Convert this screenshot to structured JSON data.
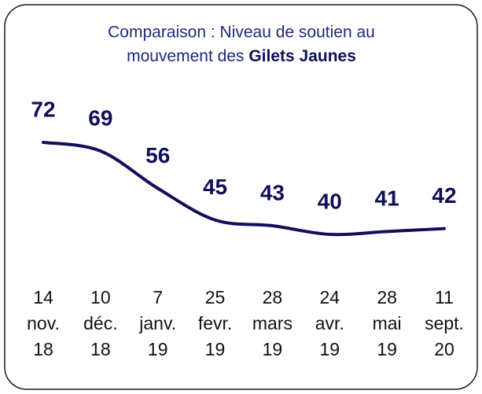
{
  "chart_data": {
    "type": "line",
    "title": "Comparaison : Niveau de soutien au",
    "title_line2": "mouvement des",
    "title_emphasis": "Gilets Jaunes",
    "categories": [
      [
        "14",
        "nov.",
        "18"
      ],
      [
        "10",
        "déc.",
        "18"
      ],
      [
        "7",
        "janv.",
        "19"
      ],
      [
        "25",
        "fevr.",
        "19"
      ],
      [
        "28",
        "mars",
        "19"
      ],
      [
        "24",
        "avr.",
        "19"
      ],
      [
        "28",
        "mai",
        "19"
      ],
      [
        "11",
        "sept.",
        "20"
      ]
    ],
    "values": [
      72,
      69,
      56,
      45,
      43,
      40,
      41,
      42
    ],
    "color": "#0f0f5a"
  }
}
